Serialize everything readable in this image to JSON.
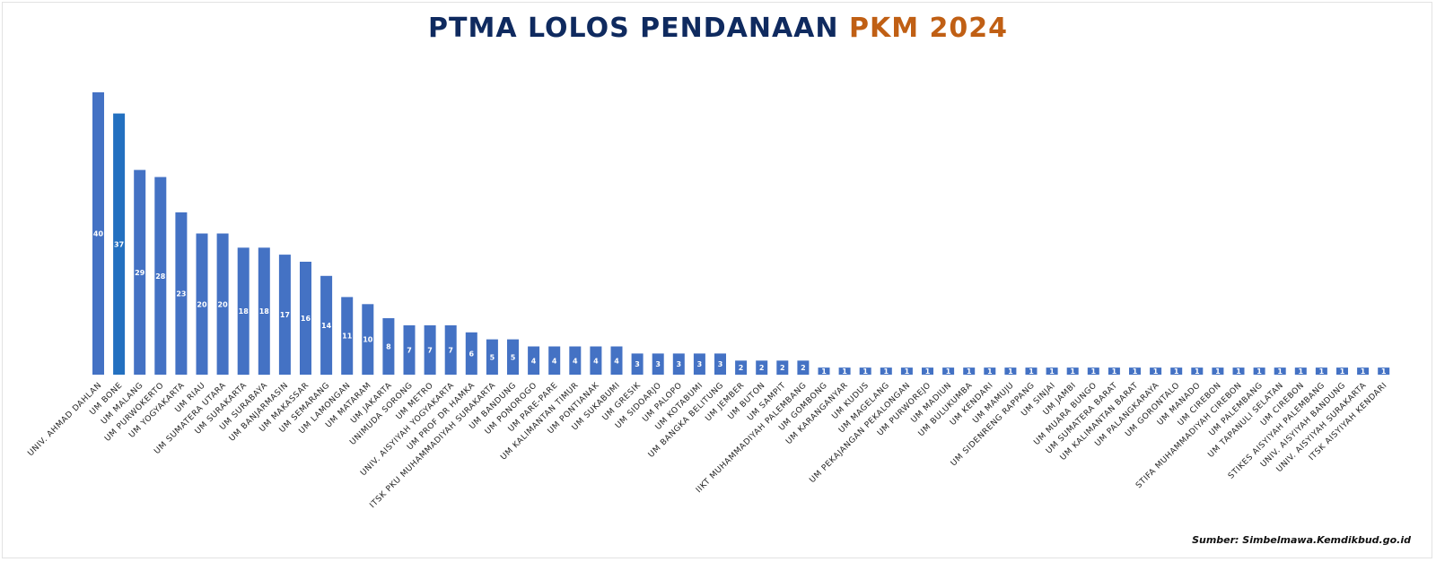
{
  "title_main": "PTMA LOLOS PENDANAAN",
  "title_accent": "PKM 2024",
  "source": "Sumber: Simbelmawa.Kemdikbud.go.id",
  "colors": {
    "bar": "#4472c4",
    "bar_highlight": "#2370c0",
    "title_main": "#0f2a5f",
    "title_accent": "#c05f14"
  },
  "chart_data": {
    "type": "bar",
    "title": "PTMA LOLOS PENDANAAN PKM 2024",
    "xlabel": "",
    "ylabel": "",
    "ylim": [
      0,
      42
    ],
    "grid": false,
    "legend": "none",
    "highlight_index": 1,
    "categories": [
      "UNIV. AHMAD DAHLAN",
      "UM BONE",
      "UM MALANG",
      "UM PURWOKERTO",
      "UM YOGYAKARTA",
      "UM RIAU",
      "UM SUMATERA UTARA",
      "UM SURAKARTA",
      "UM SURABAYA",
      "UM BANJARMASIN",
      "UM MAKASSAR",
      "UM SEMARANG",
      "UM LAMONGAN",
      "UM MATARAM",
      "UM JAKARTA",
      "UNIMUDA SORONG",
      "UM METRO",
      "UNIV. AISYIYAH YOGYAKARTA",
      "UM PROF DR HAMKA",
      "ITSK PKU MUHAMMADIYAH SURAKARTA",
      "UM BANDUNG",
      "UM PONOROGO",
      "UM PARE-PARE",
      "UM KALIMANTAN TIMUR",
      "UM PONTIANAK",
      "UM SUKABUMI",
      "UM GRESIK",
      "UM SIDOARJO",
      "UM PALOPO",
      "UM KOTABUMI",
      "UM BANGKA BELITUNG",
      "UM JEMBER",
      "UM BUTON",
      "UM SAMPIT",
      "IIKT MUHAMMADIYAH PALEMBANG",
      "UM GOMBONG",
      "UM KARANGANYAR",
      "UM KUDUS",
      "UM MAGELANG",
      "UM PEKAJANGAN PEKALONGAN",
      "UM PURWOREJO",
      "UM MADIUN",
      "UM BULUKUMBA",
      "UM KENDARI",
      "UM MAMUJU",
      "UM SIDENRENG RAPPANG",
      "UM SINJAI",
      "UM JAMBI",
      "UM MUARA BUNGO",
      "UM SUMATERA BARAT",
      "UM KALIMANTAN BARAT",
      "UM PALANGKARAYA",
      "UM GORONTALO",
      "UM MANADO",
      "UM CIREBON",
      "STIFA MUHAMMADIYAH CIREBON",
      "UM PALEMBANG",
      "UM TAPANULI SELATAN",
      "UM CIREBON",
      "STIKES AISYIYAH PALEMBANG",
      "UNIV. AISYIYAH BANDUNG",
      "UNIV. AISYIYAH SURAKARTA",
      "ITSK AISYIYAH KENDARI"
    ],
    "values": [
      40,
      37,
      29,
      28,
      23,
      20,
      20,
      18,
      18,
      17,
      16,
      14,
      11,
      10,
      8,
      7,
      7,
      7,
      6,
      5,
      5,
      4,
      4,
      4,
      4,
      4,
      3,
      3,
      3,
      3,
      3,
      2,
      2,
      2,
      2,
      1,
      1,
      1,
      1,
      1,
      1,
      1,
      1,
      1,
      1,
      1,
      1,
      1,
      1,
      1,
      1,
      1,
      1,
      1,
      1,
      1,
      1,
      1,
      1,
      1,
      1,
      1,
      1
    ],
    "data_labels": [
      "40",
      "37",
      "29",
      "28",
      "23",
      "20",
      "20",
      "18",
      "18",
      "17",
      "16",
      "14",
      "11",
      "10",
      "8",
      "7",
      "7",
      "7",
      "6",
      "5",
      "5",
      "4",
      "4",
      "4",
      "4",
      "4",
      "3",
      "3",
      "3",
      "3",
      "3",
      "2",
      "2",
      "2",
      "2",
      "1",
      "1",
      "1",
      "1",
      "1",
      "1",
      "1",
      "1",
      "1",
      "1",
      "1",
      "1",
      "1",
      "1",
      "1",
      "1",
      "1",
      "1",
      "1",
      "1",
      "1",
      "1",
      "1",
      "1",
      "1",
      "1",
      "1",
      "1"
    ]
  }
}
